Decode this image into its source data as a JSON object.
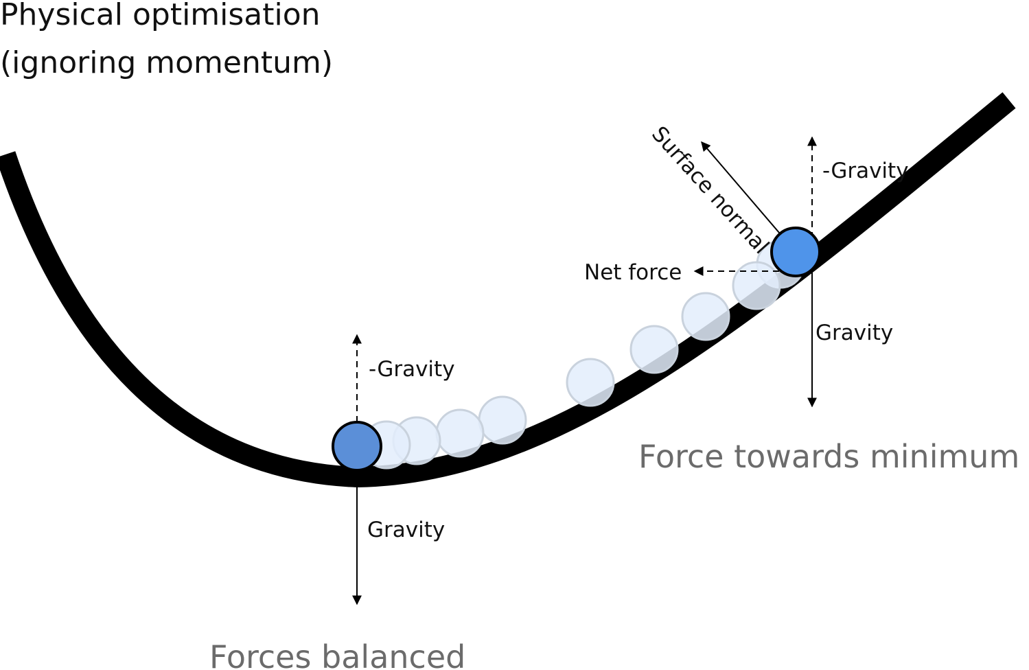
{
  "title": {
    "line1": "Physical optimisation",
    "line2": "(ignoring momentum)"
  },
  "left_ball": {
    "up_label": "-Gravity",
    "down_label": "Gravity",
    "caption": "Forces balanced"
  },
  "right_ball": {
    "up_label": "-Gravity",
    "down_label": "Gravity",
    "normal_label": "Surface normal",
    "net_label": "Net force",
    "caption": "Force towards minimum"
  },
  "colors": {
    "curve": "#000000",
    "ball_left": "#5b8fd8",
    "ball_right": "#4f94ea",
    "ghost_fill": "#e3edfb",
    "ghost_stroke": "#c9d2dd",
    "caption": "#6b6b6b"
  }
}
